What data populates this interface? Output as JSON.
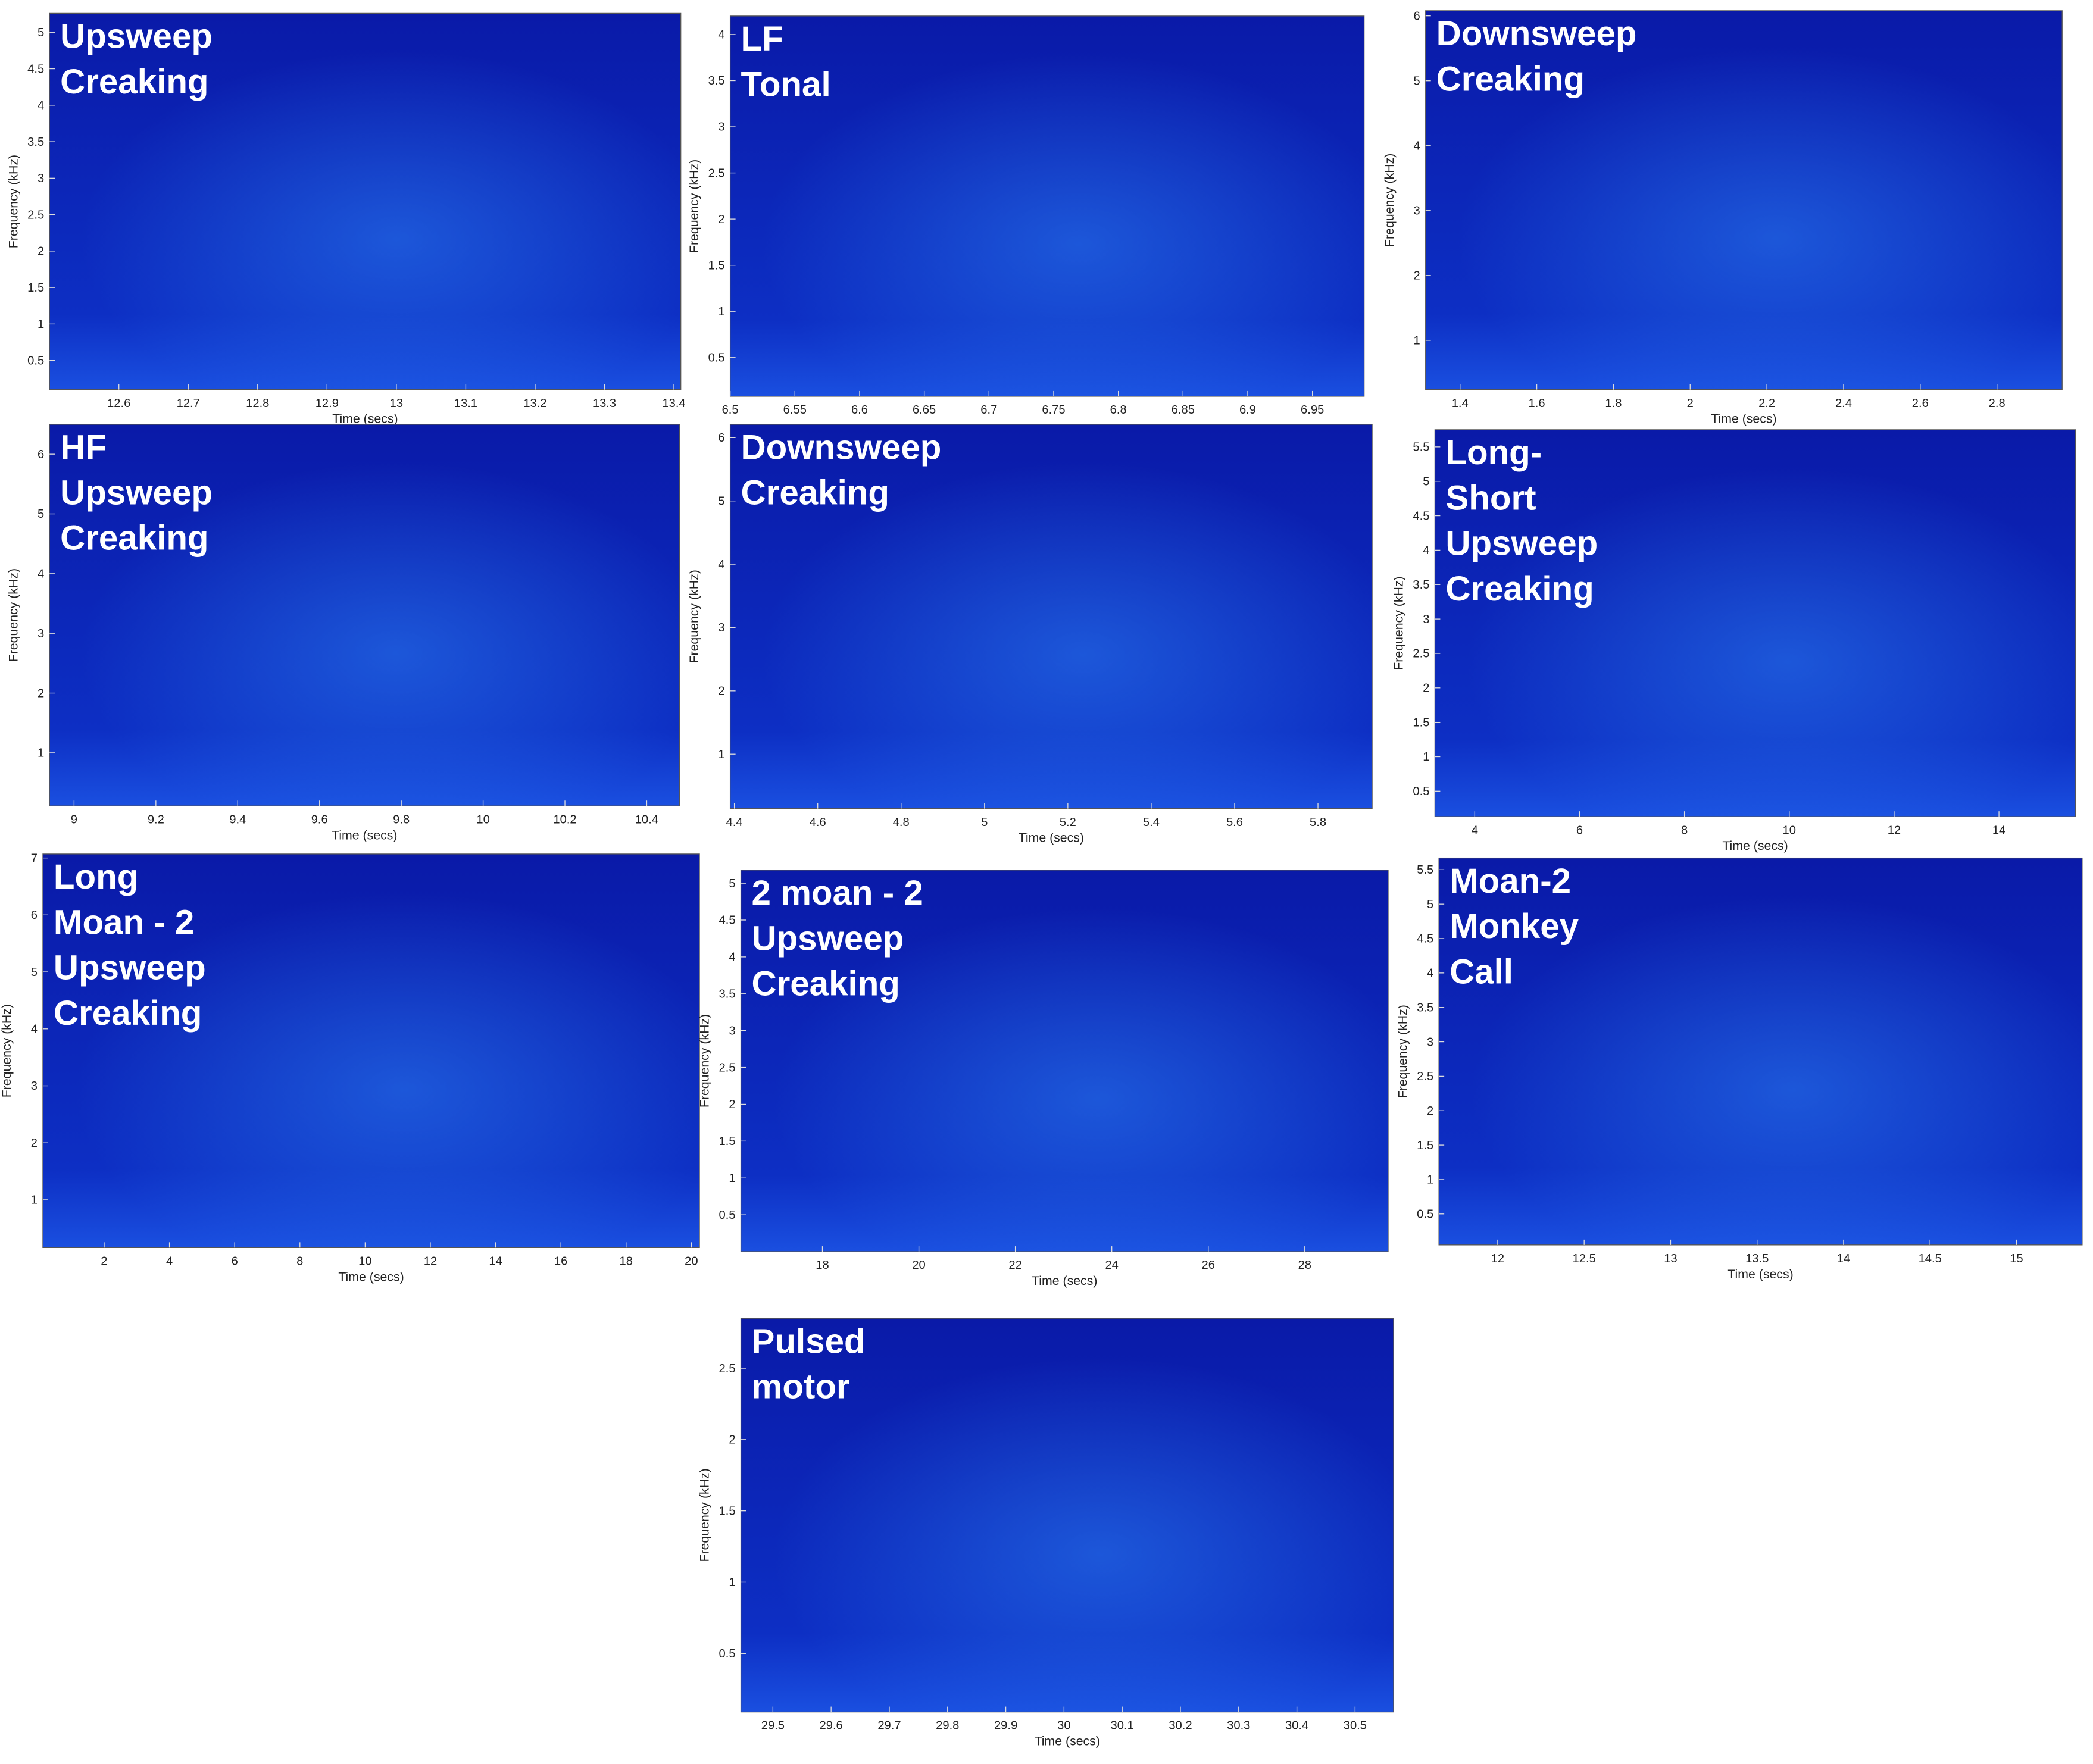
{
  "chart_data": [
    {
      "type": "spectrogram",
      "title": [
        "Upsweep",
        "Creaking"
      ],
      "xlabel": "Time (secs)",
      "ylabel": "Frequency (kHz)",
      "xlim": [
        12.5,
        13.41
      ],
      "ylim": [
        0.1,
        5.26
      ],
      "xticks": [
        12.6,
        12.7,
        12.8,
        12.9,
        13,
        13.1,
        13.2,
        13.3,
        13.4
      ],
      "yticks": [
        0.5,
        1,
        1.5,
        2,
        2.5,
        3,
        3.5,
        4,
        4.5,
        5
      ]
    },
    {
      "type": "spectrogram",
      "title": [
        "LF",
        "Tonal"
      ],
      "ylabel": "Frequency (kHz)",
      "xlim": [
        6.5,
        6.99
      ],
      "ylim": [
        0.08,
        4.2
      ],
      "xticks": [
        6.5,
        6.55,
        6.6,
        6.65,
        6.7,
        6.75,
        6.8,
        6.85,
        6.9,
        6.95
      ],
      "yticks": [
        0.5,
        1,
        1.5,
        2,
        2.5,
        3,
        3.5,
        4
      ]
    },
    {
      "type": "spectrogram",
      "title": [
        "Downsweep",
        "Creaking"
      ],
      "xlabel": "Time (secs)",
      "ylabel": "Frequency (kHz)",
      "xlim": [
        1.31,
        2.97
      ],
      "ylim": [
        0.24,
        6.08
      ],
      "xticks": [
        1.4,
        1.6,
        1.8,
        2,
        2.2,
        2.4,
        2.6,
        2.8
      ],
      "yticks": [
        1,
        2,
        3,
        4,
        5,
        6
      ]
    },
    {
      "type": "spectrogram",
      "title": [
        "HF",
        "Upsweep",
        "Creaking"
      ],
      "xlabel": "Time (secs)",
      "ylabel": "Frequency (kHz)",
      "xlim": [
        8.94,
        10.48
      ],
      "ylim": [
        0.11,
        6.5
      ],
      "xticks": [
        9,
        9.2,
        9.4,
        9.6,
        9.8,
        10,
        10.2,
        10.4
      ],
      "yticks": [
        1,
        2,
        3,
        4,
        5,
        6
      ]
    },
    {
      "type": "spectrogram",
      "title": [
        "Downsweep",
        "Creaking"
      ],
      "xlabel": "Time (secs)",
      "ylabel": "Frequency (kHz)",
      "xlim": [
        4.39,
        5.93
      ],
      "ylim": [
        0.14,
        6.21
      ],
      "xticks": [
        4.4,
        4.6,
        4.8,
        5,
        5.2,
        5.4,
        5.6,
        5.8
      ],
      "yticks": [
        1,
        2,
        3,
        4,
        5,
        6
      ]
    },
    {
      "type": "spectrogram",
      "title": [
        "Long-",
        "Short",
        "Upsweep",
        "Creaking"
      ],
      "xlabel": "Time (secs)",
      "ylabel": "Frequency (kHz)",
      "xlim": [
        3.24,
        15.46
      ],
      "ylim": [
        0.13,
        5.75
      ],
      "xticks": [
        4,
        6,
        8,
        10,
        12,
        14
      ],
      "yticks": [
        0.5,
        1,
        1.5,
        2,
        2.5,
        3,
        3.5,
        4,
        4.5,
        5,
        5.5
      ]
    },
    {
      "type": "spectrogram",
      "title": [
        "Long",
        "Moan - 2",
        "Upsweep",
        "Creaking"
      ],
      "xlabel": "Time (secs)",
      "ylabel": "Frequency (kHz)",
      "xlim": [
        0.12,
        20.25
      ],
      "ylim": [
        0.16,
        7.07
      ],
      "xticks": [
        2,
        4,
        6,
        8,
        10,
        12,
        14,
        16,
        18,
        20
      ],
      "yticks": [
        1,
        2,
        3,
        4,
        5,
        6,
        7
      ]
    },
    {
      "type": "spectrogram",
      "title": [
        "2 moan - 2",
        "Upsweep",
        "Creaking"
      ],
      "xlabel": "Time (secs)",
      "ylabel": "Frequency (kHz)",
      "xlim": [
        16.31,
        29.73
      ],
      "ylim": [
        0,
        5.18
      ],
      "xticks": [
        18,
        20,
        22,
        24,
        26,
        28
      ],
      "yticks": [
        0.5,
        1,
        1.5,
        2,
        2.5,
        3,
        3.5,
        4,
        4.5,
        5
      ]
    },
    {
      "type": "spectrogram",
      "title": [
        "Moan-2",
        "Monkey",
        "Call"
      ],
      "xlabel": "Time (secs)",
      "ylabel": "Frequency (kHz)",
      "xlim": [
        11.66,
        15.38
      ],
      "ylim": [
        0.05,
        5.67
      ],
      "xticks": [
        12,
        12.5,
        13,
        13.5,
        14,
        14.5,
        15
      ],
      "yticks": [
        0.5,
        1,
        1.5,
        2,
        2.5,
        3,
        3.5,
        4,
        4.5,
        5,
        5.5
      ]
    },
    {
      "type": "spectrogram",
      "title": [
        "Pulsed",
        "motor"
      ],
      "xlabel": "Time (secs)",
      "ylabel": "Frequency (kHz)",
      "xlim": [
        29.445,
        30.566
      ],
      "ylim": [
        0.09,
        2.85
      ],
      "xticks": [
        29.5,
        29.6,
        29.7,
        29.8,
        29.9,
        30,
        30.1,
        30.2,
        30.3,
        30.4,
        30.5
      ],
      "yticks": [
        0.5,
        1,
        1.5,
        2,
        2.5
      ]
    }
  ]
}
